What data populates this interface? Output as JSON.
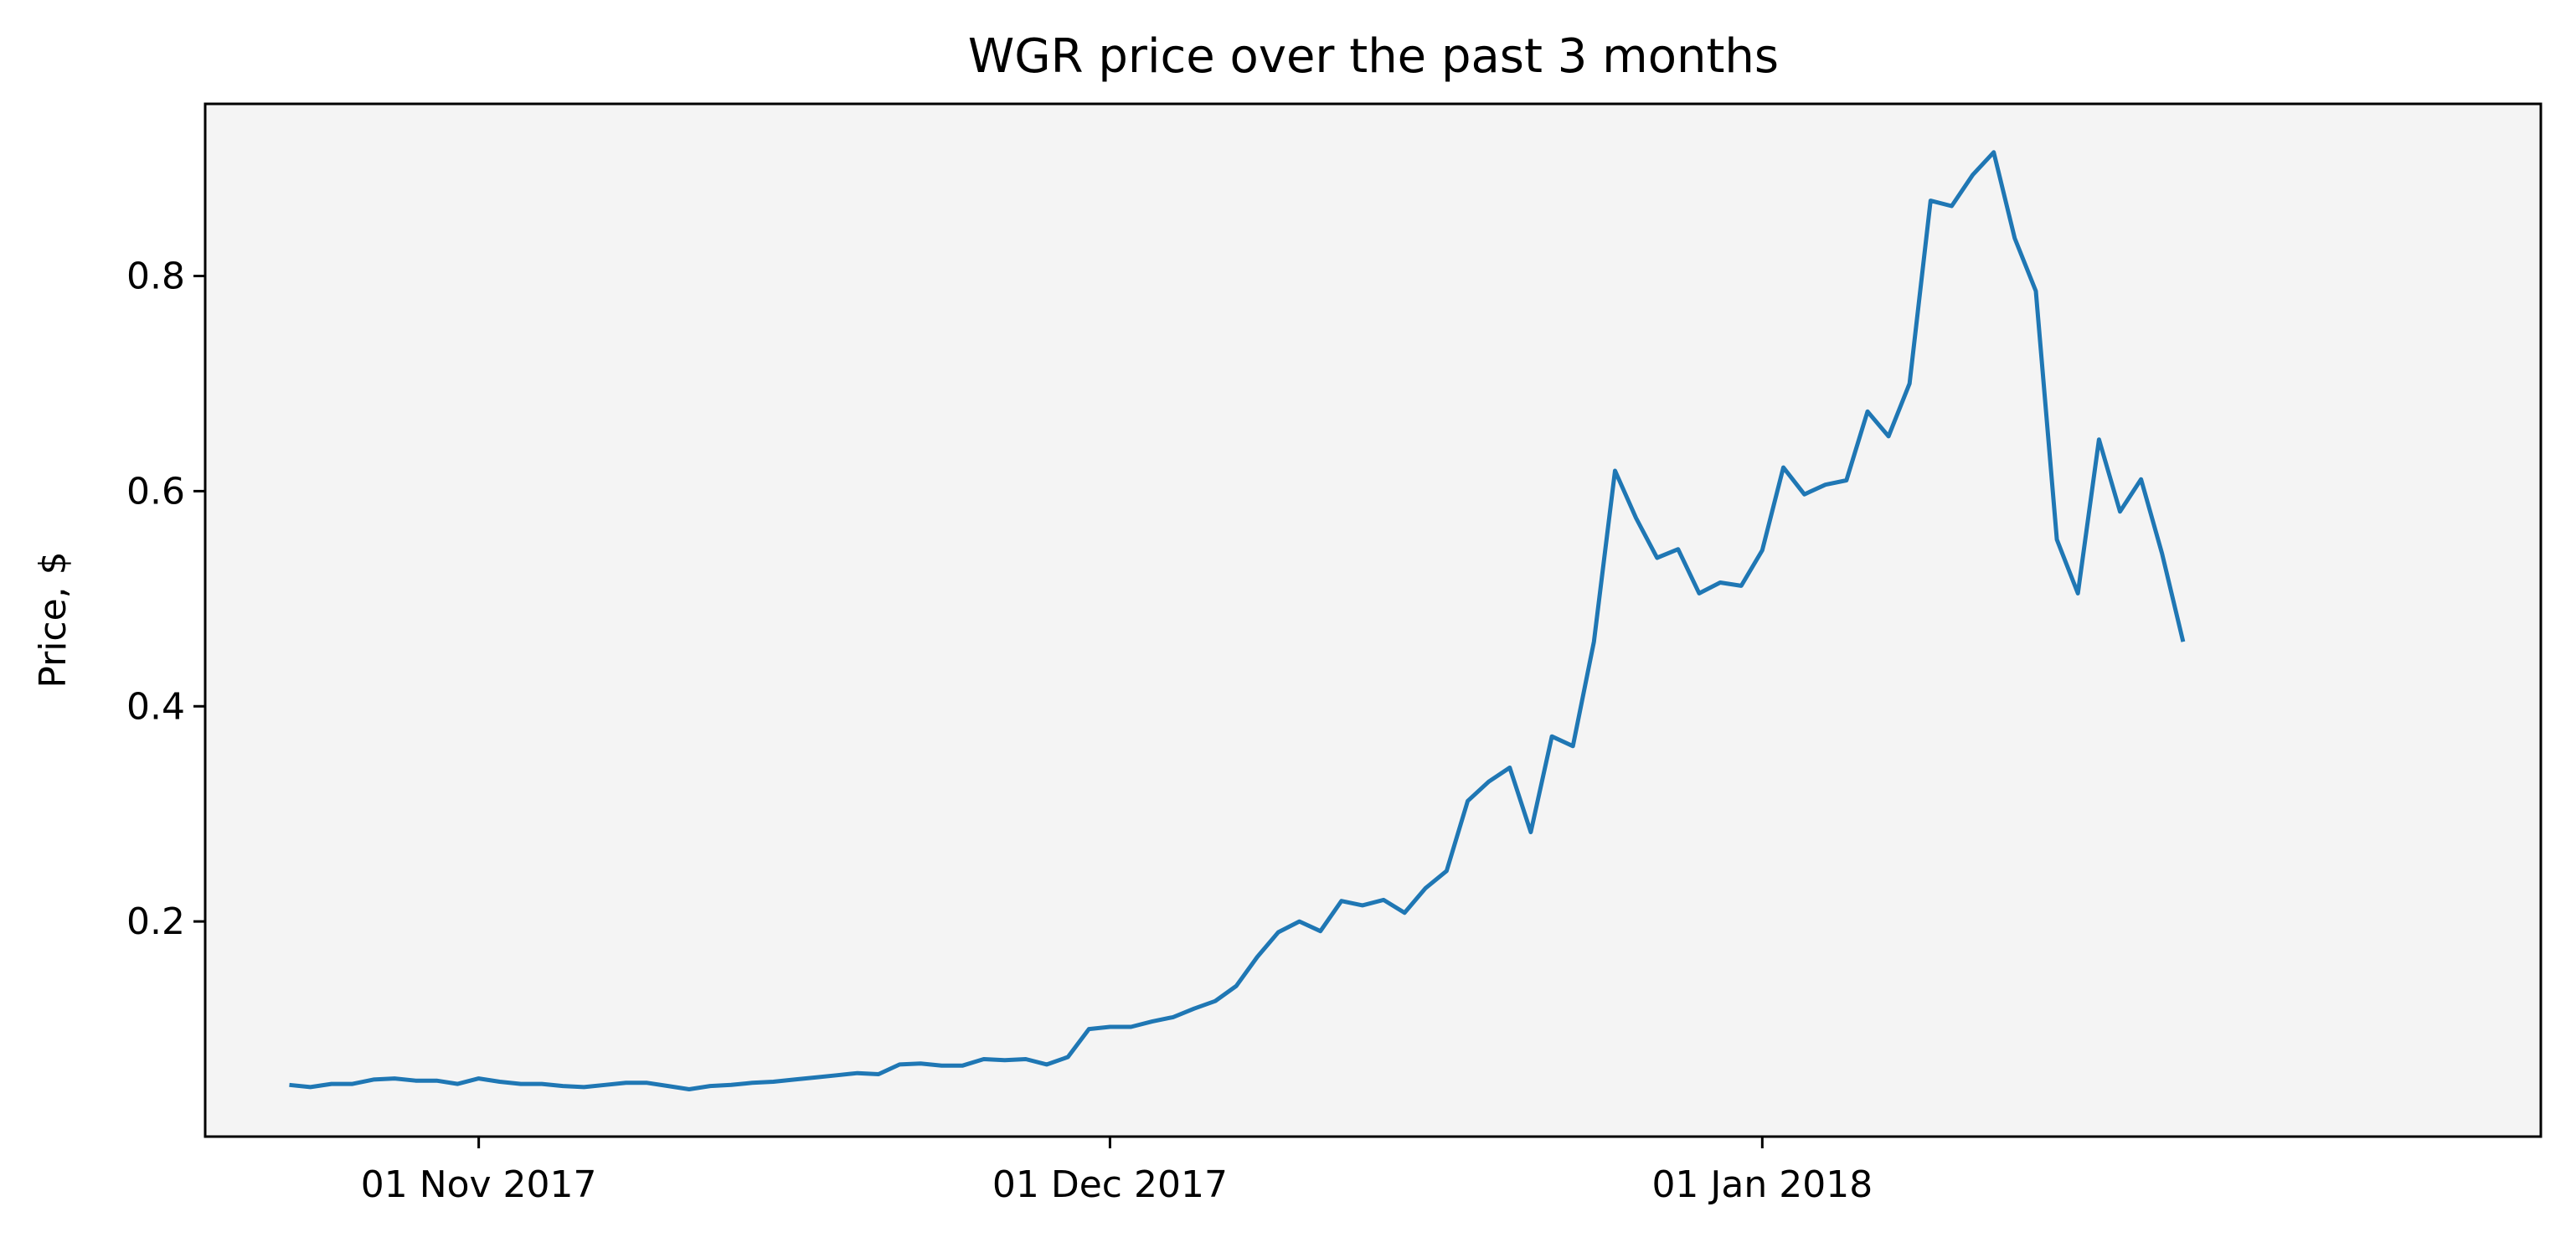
{
  "chart_data": {
    "type": "line",
    "title": "WGR price over the past 3 months",
    "xlabel": "",
    "ylabel": "Price, $",
    "x_start": "2017-10-23",
    "x_step_days": 1,
    "xlim": [
      "2017-10-19",
      "2018-02-07"
    ],
    "ylim": [
      0.0,
      0.96
    ],
    "x_ticks": [
      {
        "date": "2017-11-01",
        "label": "01 Nov 2017"
      },
      {
        "date": "2017-12-01",
        "label": "01 Dec 2017"
      },
      {
        "date": "2018-01-01",
        "label": "01 Jan 2018"
      }
    ],
    "y_ticks": [
      {
        "value": 0.2,
        "label": "0.2"
      },
      {
        "value": 0.4,
        "label": "0.4"
      },
      {
        "value": 0.6,
        "label": "0.6"
      },
      {
        "value": 0.8,
        "label": "0.8"
      }
    ],
    "grid": false,
    "background": "#f4f4f4",
    "line_color": "#1f77b4",
    "series": [
      {
        "values": [
          0.048,
          0.046,
          0.049,
          0.049,
          0.053,
          0.054,
          0.052,
          0.052,
          0.049,
          0.054,
          0.051,
          0.049,
          0.049,
          0.047,
          0.046,
          0.048,
          0.05,
          0.05,
          0.047,
          0.044,
          0.047,
          0.048,
          0.05,
          0.051,
          0.053,
          0.055,
          0.057,
          0.059,
          0.058,
          0.067,
          0.068,
          0.066,
          0.066,
          0.072,
          0.071,
          0.072,
          0.067,
          0.074,
          0.1,
          0.102,
          0.102,
          0.107,
          0.111,
          0.119,
          0.126,
          0.14,
          0.167,
          0.19,
          0.2,
          0.191,
          0.219,
          0.215,
          0.22,
          0.208,
          0.231,
          0.247,
          0.312,
          0.33,
          0.343,
          0.283,
          0.372,
          0.363,
          0.46,
          0.619,
          0.575,
          0.538,
          0.546,
          0.505,
          0.515,
          0.512,
          0.545,
          0.622,
          0.597,
          0.606,
          0.61,
          0.674,
          0.651,
          0.7,
          0.87,
          0.865,
          0.894,
          0.915,
          0.835,
          0.786,
          0.555,
          0.505,
          0.648,
          0.581,
          0.611,
          0.542,
          0.46
        ]
      }
    ]
  }
}
